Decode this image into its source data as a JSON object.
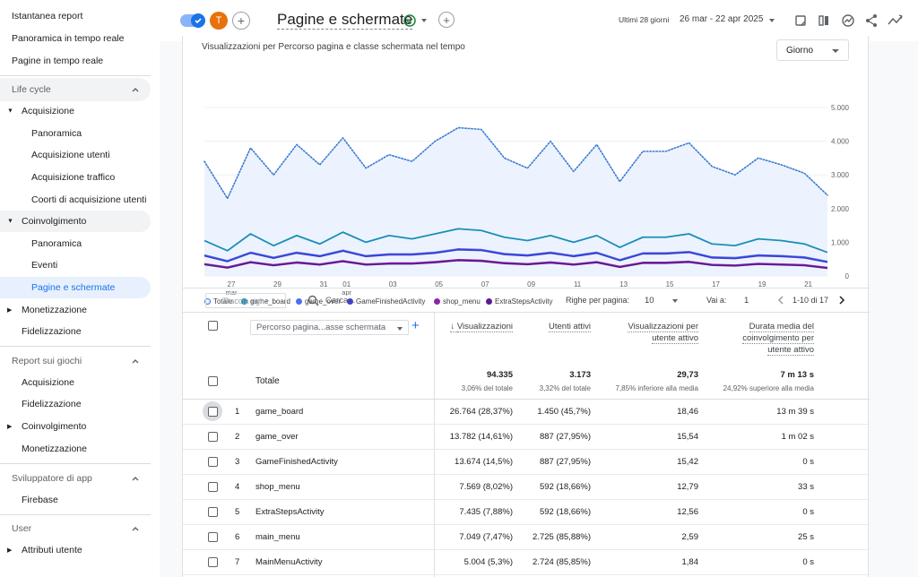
{
  "sidebar": {
    "top_items": [
      "Istantanea report",
      "Panoramica in tempo reale",
      "Pagine in tempo reale"
    ],
    "life_cycle": {
      "title": "Life cycle",
      "acquisizione": {
        "label": "Acquisizione",
        "children": [
          "Panoramica",
          "Acquisizione utenti",
          "Acquisizione traffico",
          "Coorti di acquisizione utenti"
        ]
      },
      "coinvolgimento": {
        "label": "Coinvolgimento",
        "children": [
          "Panoramica",
          "Eventi",
          "Pagine e schermate"
        ]
      },
      "monetizzazione": "Monetizzazione",
      "fidelizzazione": "Fidelizzazione"
    },
    "giochi": {
      "title": "Report sui giochi",
      "items": [
        "Acquisizione",
        "Fidelizzazione",
        "Coinvolgimento",
        "Monetizzazione"
      ]
    },
    "sviluppatore": {
      "title": "Sviluppatore di app",
      "items": [
        "Firebase"
      ]
    },
    "user": {
      "title": "User",
      "items": [
        "Attributi utente"
      ]
    }
  },
  "header": {
    "avatar_letter": "T",
    "title": "Pagine e schermate",
    "date_prefix": "Ultimi 28 giorni",
    "date_range": "26 mar - 22 apr 2025"
  },
  "card": {
    "title": "Visualizzazioni per Percorso pagina e classe schermata nel tempo",
    "granularity": "Giorno"
  },
  "chart_data": {
    "type": "line",
    "title": "Visualizzazioni per Percorso pagina e classe schermata nel tempo",
    "y_ticks": [
      "5.000",
      "4.000",
      "3.000",
      "2.000",
      "1.000",
      "0"
    ],
    "ylim": [
      0,
      5000
    ],
    "x_tick_labels": [
      {
        "day": 0,
        "label": "27",
        "sub": "mar"
      },
      {
        "day": 2,
        "label": "29",
        "sub": ""
      },
      {
        "day": 4,
        "label": "31",
        "sub": ""
      },
      {
        "day": 5,
        "label": "01",
        "sub": "apr"
      },
      {
        "day": 7,
        "label": "03",
        "sub": ""
      },
      {
        "day": 9,
        "label": "05",
        "sub": ""
      },
      {
        "day": 11,
        "label": "07",
        "sub": ""
      },
      {
        "day": 13,
        "label": "09",
        "sub": ""
      },
      {
        "day": 15,
        "label": "11",
        "sub": ""
      },
      {
        "day": 17,
        "label": "13",
        "sub": ""
      },
      {
        "day": 19,
        "label": "15",
        "sub": ""
      },
      {
        "day": 21,
        "label": "17",
        "sub": ""
      },
      {
        "day": 23,
        "label": "19",
        "sub": ""
      },
      {
        "day": 25,
        "label": "21",
        "sub": ""
      }
    ],
    "series": [
      {
        "name": "Totale",
        "color": "#3a7bd5",
        "dotted": true,
        "values": [
          3400,
          2300,
          3800,
          3000,
          3900,
          3300,
          4100,
          3200,
          3600,
          3400,
          4000,
          4400,
          4350,
          3500,
          3200,
          4000,
          3100,
          3900,
          2800,
          3700,
          3700,
          3950,
          3250,
          3000,
          3500,
          3300,
          3050,
          2400
        ]
      },
      {
        "name": "game_board",
        "color": "#1a8fb8",
        "values": [
          1050,
          750,
          1250,
          900,
          1200,
          950,
          1300,
          1000,
          1200,
          1100,
          1250,
          1400,
          1350,
          1150,
          1050,
          1200,
          1000,
          1200,
          850,
          1150,
          1150,
          1250,
          950,
          900,
          1100,
          1050,
          950,
          700
        ]
      },
      {
        "name": "game_over",
        "color": "#4e6ef2",
        "values": [
          620,
          450,
          700,
          550,
          700,
          600,
          760,
          600,
          650,
          650,
          700,
          800,
          780,
          660,
          620,
          700,
          600,
          700,
          480,
          680,
          680,
          720,
          560,
          540,
          620,
          600,
          560,
          430
        ]
      },
      {
        "name": "GameFinishedActivity",
        "color": "#3c3fd1",
        "values": [
          600,
          430,
          680,
          530,
          680,
          580,
          740,
          580,
          630,
          630,
          680,
          780,
          760,
          640,
          600,
          680,
          580,
          680,
          460,
          660,
          660,
          700,
          540,
          520,
          600,
          580,
          540,
          410
        ]
      },
      {
        "name": "shop_menu",
        "color": "#8e24aa",
        "values": [
          360,
          260,
          420,
          330,
          410,
          350,
          450,
          350,
          380,
          380,
          420,
          480,
          460,
          390,
          360,
          410,
          350,
          420,
          280,
          400,
          400,
          430,
          340,
          320,
          370,
          350,
          330,
          250
        ]
      },
      {
        "name": "ExtraStepsActivity",
        "color": "#5e1a8e",
        "values": [
          340,
          240,
          400,
          310,
          390,
          330,
          430,
          330,
          360,
          360,
          400,
          460,
          440,
          370,
          340,
          390,
          330,
          400,
          260,
          380,
          380,
          410,
          320,
          300,
          350,
          330,
          310,
          230
        ]
      }
    ]
  },
  "toolbar": {
    "track_rows": "Traccia righe",
    "search_placeholder": "Cerca...",
    "rows_per_page_label": "Righe per pagina:",
    "rows_per_page": "10",
    "goto_label": "Vai a:",
    "goto_value": "1",
    "pagination": "1-10 di 17"
  },
  "table": {
    "dimension_label": "Percorso pagina...asse schermata",
    "col_views": "Visualizzazioni",
    "col_users": "Utenti attivi",
    "col_views_per_user": [
      "Visualizzazioni per",
      "utente attivo"
    ],
    "col_engagement": [
      "Durata media del",
      "coinvolgimento per",
      "utente attivo"
    ],
    "total_label": "Totale",
    "totals": {
      "views": "94.335",
      "views_sub": "3,06% del totale",
      "users": "3.173",
      "users_sub": "3,32% del totale",
      "vpu": "29,73",
      "vpu_sub": "7,85% inferiore alla media",
      "eng": "7 m 13 s",
      "eng_sub": "24,92% superiore alla media"
    },
    "rows": [
      {
        "idx": "1",
        "name": "game_board",
        "views": "26.764 (28,37%)",
        "users": "1.450 (45,7%)",
        "vpu": "18,46",
        "eng": "13 m 39 s"
      },
      {
        "idx": "2",
        "name": "game_over",
        "views": "13.782 (14,61%)",
        "users": "887 (27,95%)",
        "vpu": "15,54",
        "eng": "1 m 02 s"
      },
      {
        "idx": "3",
        "name": "GameFinishedActivity",
        "views": "13.674 (14,5%)",
        "users": "887 (27,95%)",
        "vpu": "15,42",
        "eng": "0 s"
      },
      {
        "idx": "4",
        "name": "shop_menu",
        "views": "7.569 (8,02%)",
        "users": "592 (18,66%)",
        "vpu": "12,79",
        "eng": "33 s"
      },
      {
        "idx": "5",
        "name": "ExtraStepsActivity",
        "views": "7.435 (7,88%)",
        "users": "592 (18,66%)",
        "vpu": "12,56",
        "eng": "0 s"
      },
      {
        "idx": "6",
        "name": "main_menu",
        "views": "7.049 (7,47%)",
        "users": "2.725 (85,88%)",
        "vpu": "2,59",
        "eng": "25 s"
      },
      {
        "idx": "7",
        "name": "MainMenuActivity",
        "views": "5.004 (5,3%)",
        "users": "2.724 (85,85%)",
        "vpu": "1,84",
        "eng": "0 s"
      }
    ]
  },
  "colors": {
    "accent": "#1a73e8",
    "avatar": "#e8710a",
    "selected_bg": "#e8f0fe"
  }
}
